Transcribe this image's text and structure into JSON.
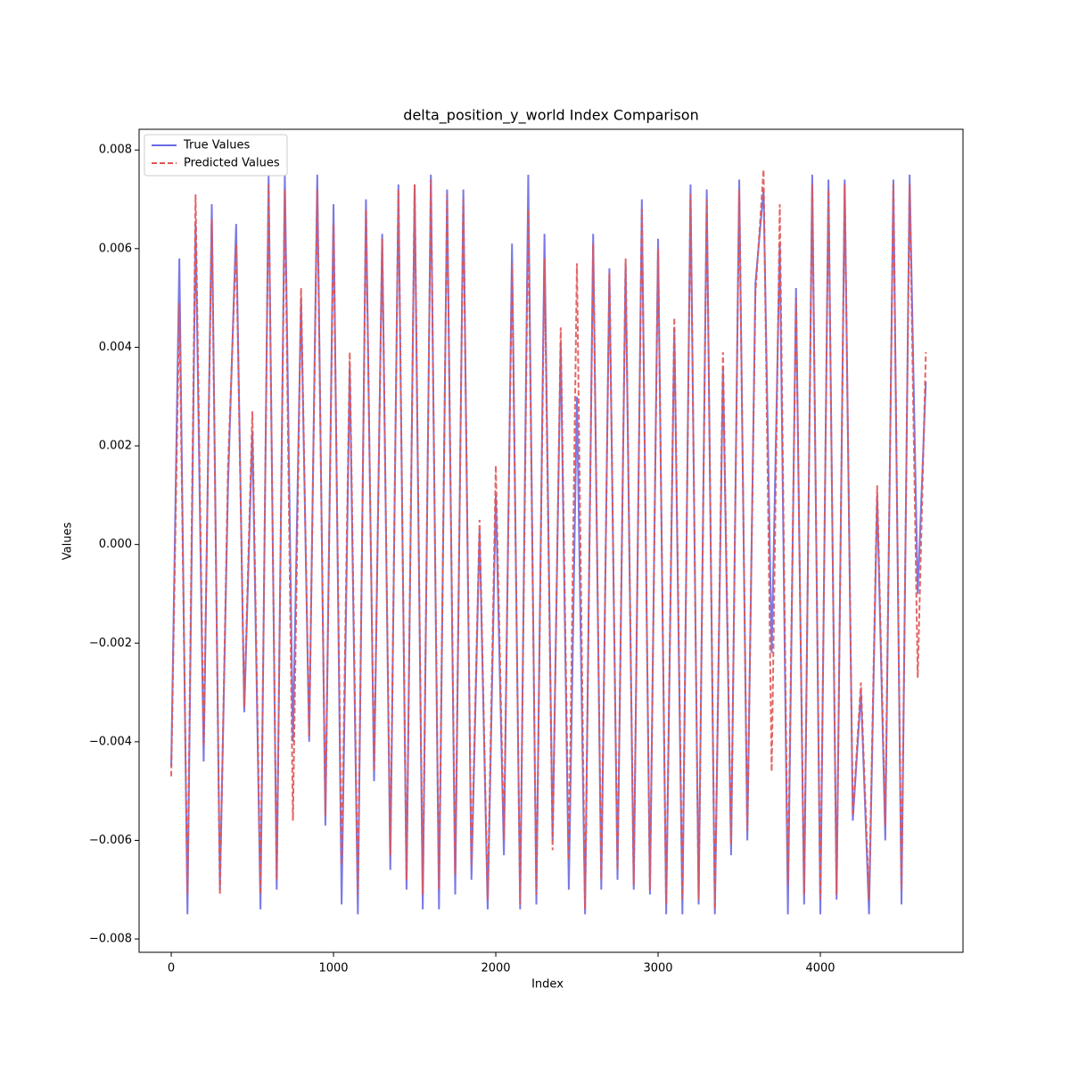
{
  "chart_data": {
    "type": "line",
    "title": "delta_position_y_world Index Comparison",
    "x_label": "Index",
    "y_label": "Values",
    "x": [
      0,
      50,
      100,
      150,
      200,
      250,
      300,
      350,
      400,
      450,
      500,
      550,
      600,
      650,
      700,
      750,
      800,
      850,
      900,
      950,
      1000,
      1050,
      1100,
      1150,
      1200,
      1250,
      1300,
      1350,
      1400,
      1450,
      1500,
      1550,
      1600,
      1650,
      1700,
      1750,
      1800,
      1850,
      1900,
      1950,
      2000,
      2050,
      2100,
      2150,
      2200,
      2250,
      2300,
      2350,
      2400,
      2450,
      2500,
      2550,
      2600,
      2650,
      2700,
      2750,
      2800,
      2850,
      2900,
      2950,
      3000,
      3050,
      3100,
      3150,
      3200,
      3250,
      3300,
      3350,
      3400,
      3450,
      3500,
      3550,
      3600,
      3650,
      3700,
      3750,
      3800,
      3850,
      3900,
      3950,
      4000,
      4050,
      4100,
      4150,
      4200,
      4250,
      4300,
      4350,
      4400,
      4450,
      4500,
      4550,
      4600,
      4650
    ],
    "series": [
      {
        "name": "True Values",
        "color": "#6a6ae6",
        "dash": false,
        "values": [
          -0.0045,
          0.0058,
          -0.0075,
          0.0065,
          -0.0044,
          0.0069,
          -0.007,
          0.0012,
          0.0065,
          -0.0034,
          0.0023,
          -0.0074,
          0.0075,
          -0.007,
          0.0075,
          -0.004,
          0.005,
          -0.004,
          0.0075,
          -0.0057,
          0.0069,
          -0.0073,
          0.0036,
          -0.0075,
          0.007,
          -0.0048,
          0.0063,
          -0.0066,
          0.0073,
          -0.007,
          0.0073,
          -0.0074,
          0.0075,
          -0.0074,
          0.0072,
          -0.0071,
          0.0072,
          -0.0068,
          0.0003,
          -0.0074,
          0.001,
          -0.0063,
          0.0061,
          -0.0074,
          0.0075,
          -0.0073,
          0.0063,
          -0.006,
          0.0041,
          -0.007,
          0.003,
          -0.0075,
          0.0063,
          -0.007,
          0.0056,
          -0.0068,
          0.0057,
          -0.007,
          0.007,
          -0.0071,
          0.0062,
          -0.0075,
          0.0044,
          -0.0075,
          0.0073,
          -0.0073,
          0.0072,
          -0.0075,
          0.0036,
          -0.0063,
          0.0074,
          -0.006,
          0.0053,
          0.0072,
          -0.0022,
          0.0061,
          -0.0075,
          0.0052,
          -0.0073,
          0.0075,
          -0.0075,
          0.0074,
          -0.0072,
          0.0074,
          -0.0056,
          -0.003,
          -0.0075,
          0.001,
          -0.006,
          0.0074,
          -0.0073,
          0.0075,
          -0.001,
          0.0033
        ]
      },
      {
        "name": "Predicted Values",
        "color": "#e05555",
        "dash": true,
        "values": [
          -0.0047,
          0.0049,
          -0.0071,
          0.0071,
          -0.0041,
          0.0066,
          -0.0071,
          0.0016,
          0.0061,
          -0.0033,
          0.0027,
          -0.0071,
          0.0073,
          -0.0068,
          0.0072,
          -0.0056,
          0.0052,
          -0.0039,
          0.0072,
          -0.0055,
          0.0065,
          -0.0065,
          0.0039,
          -0.0071,
          0.0068,
          -0.0046,
          0.0062,
          -0.0063,
          0.0072,
          -0.0068,
          0.0073,
          -0.0071,
          0.0074,
          -0.007,
          0.0071,
          -0.0067,
          0.007,
          -0.0065,
          0.0005,
          -0.0072,
          0.0016,
          -0.006,
          0.0057,
          -0.0073,
          0.0068,
          -0.0071,
          0.0058,
          -0.0062,
          0.0044,
          -0.0064,
          0.0057,
          -0.0074,
          0.0061,
          -0.0068,
          0.0055,
          -0.0066,
          0.0058,
          -0.0069,
          0.0068,
          -0.007,
          0.006,
          -0.0073,
          0.0046,
          -0.0072,
          0.0071,
          -0.0072,
          0.007,
          -0.0074,
          0.0039,
          -0.0061,
          0.0072,
          -0.0058,
          0.0051,
          0.0076,
          -0.0046,
          0.0069,
          -0.0069,
          0.005,
          -0.0071,
          0.0073,
          -0.0072,
          0.0072,
          -0.0071,
          0.0073,
          -0.0055,
          -0.0028,
          -0.0072,
          0.0012,
          -0.0057,
          0.0073,
          -0.007,
          0.0073,
          -0.0027,
          0.0039
        ]
      }
    ],
    "xlim": [
      -198,
      4879
    ],
    "ylim": [
      -0.00827,
      0.00842
    ],
    "xticks": [
      0,
      1000,
      2000,
      3000,
      4000
    ],
    "yticks": [
      {
        "value": -0.008,
        "label": "−0.008"
      },
      {
        "value": -0.006,
        "label": "−0.006"
      },
      {
        "value": -0.004,
        "label": "−0.004"
      },
      {
        "value": -0.002,
        "label": "−0.002"
      },
      {
        "value": 0,
        "label": "0.000"
      },
      {
        "value": 0.002,
        "label": "0.002"
      },
      {
        "value": 0.004,
        "label": "0.004"
      },
      {
        "value": 0.006,
        "label": "0.006"
      },
      {
        "value": 0.008,
        "label": "0.008"
      }
    ],
    "legend": "upper left",
    "grid": false
  }
}
